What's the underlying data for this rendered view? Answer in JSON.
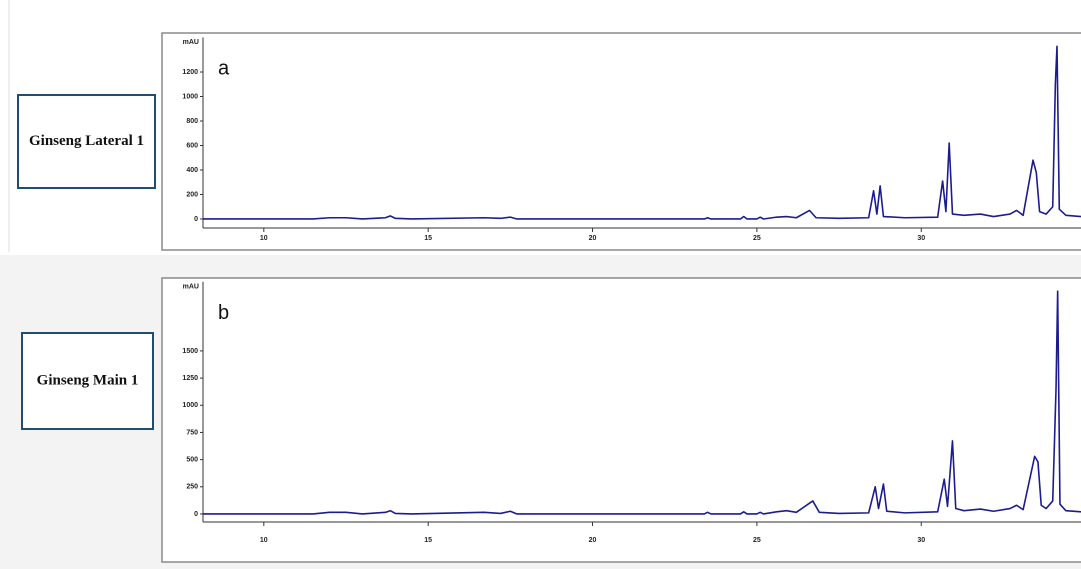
{
  "chart_data": [
    {
      "type": "line",
      "panel_label": "Ginseng Lateral 1",
      "annotation": "a",
      "ylabel": "mAU",
      "xlim": [
        8.15,
        34.86
      ],
      "xticks": [
        10,
        15,
        20,
        25,
        30
      ],
      "ylim": [
        -50,
        1450
      ],
      "yticks": [
        0,
        200,
        400,
        600,
        800,
        1000,
        1200
      ],
      "color": "#1c1c8f",
      "x": [
        8.15,
        11.5,
        12,
        12.5,
        13,
        13.7,
        13.85,
        14,
        14.5,
        16.7,
        17.2,
        17.5,
        17.7,
        23.4,
        23.5,
        23.6,
        24.5,
        24.6,
        24.7,
        25,
        25.1,
        25.2,
        25.6,
        25.9,
        26.2,
        26.6,
        26.8,
        27.5,
        28.4,
        28.55,
        28.65,
        28.75,
        28.85,
        29.5,
        30.5,
        30.65,
        30.75,
        30.85,
        30.95,
        31.3,
        31.8,
        32.2,
        32.7,
        32.9,
        33.1,
        33.4,
        33.5,
        33.6,
        33.8,
        34.0,
        34.08,
        34.13,
        34.2,
        34.4,
        34.86
      ],
      "values": [
        0,
        0,
        10,
        10,
        0,
        10,
        25,
        5,
        0,
        10,
        5,
        15,
        0,
        0,
        10,
        0,
        0,
        20,
        0,
        0,
        15,
        0,
        15,
        20,
        10,
        70,
        10,
        5,
        10,
        230,
        40,
        270,
        20,
        10,
        15,
        310,
        60,
        620,
        40,
        30,
        40,
        20,
        40,
        70,
        30,
        480,
        380,
        60,
        40,
        100,
        1100,
        1410,
        80,
        30,
        20
      ]
    },
    {
      "type": "line",
      "panel_label": "Ginseng Main 1",
      "annotation": "b",
      "ylabel": "mAU",
      "xlim": [
        8.15,
        34.86
      ],
      "xticks": [
        10,
        15,
        20,
        25,
        30
      ],
      "ylim": [
        -50,
        2100
      ],
      "yticks": [
        0,
        250,
        500,
        750,
        1000,
        1250,
        1500
      ],
      "color": "#1c1c8f",
      "x": [
        8.15,
        11.5,
        12,
        12.5,
        13,
        13.7,
        13.85,
        14,
        14.5,
        16.7,
        17.2,
        17.5,
        17.7,
        23.4,
        23.5,
        23.6,
        24.5,
        24.6,
        24.7,
        25,
        25.1,
        25.2,
        25.6,
        25.9,
        26.2,
        26.7,
        26.9,
        27.5,
        28.4,
        28.6,
        28.7,
        28.85,
        28.95,
        29.5,
        30.5,
        30.7,
        30.8,
        30.95,
        31.05,
        31.3,
        31.8,
        32.2,
        32.7,
        32.9,
        33.1,
        33.45,
        33.55,
        33.65,
        33.8,
        34.0,
        34.1,
        34.15,
        34.22,
        34.4,
        34.86
      ],
      "values": [
        0,
        0,
        15,
        15,
        0,
        15,
        30,
        5,
        0,
        15,
        5,
        25,
        0,
        0,
        15,
        0,
        0,
        20,
        0,
        0,
        15,
        0,
        20,
        30,
        15,
        120,
        15,
        5,
        10,
        250,
        50,
        275,
        25,
        10,
        20,
        320,
        70,
        672,
        50,
        30,
        45,
        25,
        50,
        80,
        40,
        530,
        480,
        80,
        50,
        120,
        1150,
        2050,
        90,
        30,
        20
      ]
    }
  ]
}
